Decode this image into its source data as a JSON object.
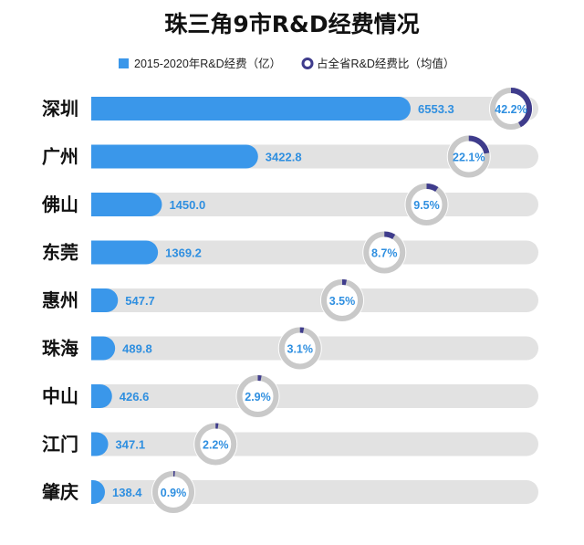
{
  "colors": {
    "bar": "#3a97ea",
    "track": "#e2e2e2",
    "ring_bg": "#c9c9c9",
    "ring_fg": "#3f3c8c",
    "label": "#2f8fe0"
  },
  "chart_data": {
    "type": "bar",
    "title": "珠三角9市R&D经费情况",
    "legend": [
      {
        "label": "2015-2020年R&D经费（亿）",
        "marker": "square"
      },
      {
        "label": "占全省R&D经费比（均值）",
        "marker": "ring"
      }
    ],
    "categories": [
      "深圳",
      "广州",
      "佛山",
      "东莞",
      "惠州",
      "珠海",
      "中山",
      "江门",
      "肇庆"
    ],
    "series": [
      {
        "name": "2015-2020年R&D经费（亿）",
        "values": [
          6553.3,
          3422.8,
          1450.0,
          1369.2,
          547.7,
          489.8,
          426.6,
          347.1,
          138.4
        ],
        "labels": [
          "6553.3",
          "3422.8",
          "1450.0",
          "1369.2",
          "547.7",
          "489.8",
          "426.6",
          "347.1",
          "138.4"
        ]
      },
      {
        "name": "占全省R&D经费比（均值）",
        "values": [
          42.2,
          22.1,
          9.5,
          8.7,
          3.5,
          3.1,
          2.9,
          2.2,
          0.9
        ],
        "labels": [
          "42.2%",
          "22.1%",
          "9.5%",
          "8.7%",
          "3.5%",
          "3.1%",
          "2.9%",
          "2.2%",
          "0.9%"
        ]
      }
    ],
    "xlim": [
      0,
      6553.3
    ]
  }
}
